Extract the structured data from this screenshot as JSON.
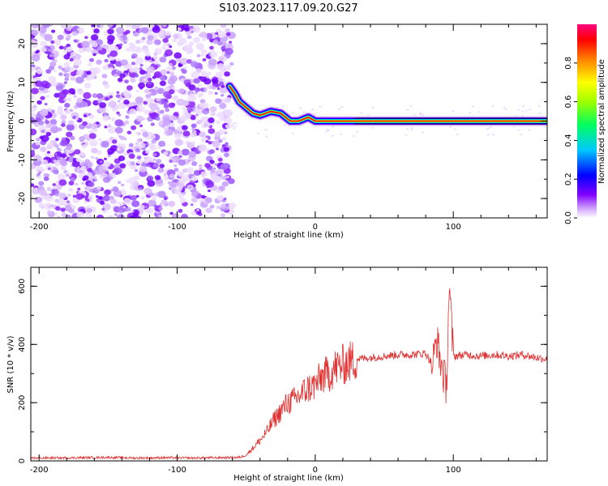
{
  "title": "S103.2023.117.09.20.G27",
  "chart_data": [
    {
      "type": "heatmap",
      "xlabel": "Height of straight line (km)",
      "ylabel": "Frequency (Hz)",
      "xlim": [
        -206,
        168
      ],
      "ylim": [
        -25,
        25
      ],
      "xticks": [
        -200,
        -100,
        0,
        100
      ],
      "xtick_labels": [
        "-200",
        "-100",
        "0",
        "100"
      ],
      "yticks": [
        -20,
        -10,
        0,
        10,
        20
      ],
      "ytick_labels": [
        "-20",
        "-10",
        "0",
        "10",
        "20"
      ],
      "noise_region_x": [
        -206,
        -60
      ],
      "ridge_points": [
        {
          "x": -62,
          "y": 9
        },
        {
          "x": -58,
          "y": 7
        },
        {
          "x": -55,
          "y": 5
        },
        {
          "x": -50,
          "y": 3.5
        },
        {
          "x": -45,
          "y": 2
        },
        {
          "x": -40,
          "y": 1.5
        },
        {
          "x": -32,
          "y": 2.5
        },
        {
          "x": -25,
          "y": 2
        },
        {
          "x": -18,
          "y": 0
        },
        {
          "x": -12,
          "y": 0
        },
        {
          "x": -5,
          "y": 1
        },
        {
          "x": 0,
          "y": 0
        },
        {
          "x": 10,
          "y": 0
        },
        {
          "x": 20,
          "y": 0
        },
        {
          "x": 30,
          "y": 0
        },
        {
          "x": 80,
          "y": 0
        },
        {
          "x": 90,
          "y": 0
        },
        {
          "x": 168,
          "y": 0
        }
      ],
      "colorbar": {
        "label": "Normalized spectral amplitude",
        "range": [
          0,
          1
        ],
        "ticks": [
          0.0,
          0.2,
          0.4,
          0.6,
          0.8
        ],
        "tick_labels": [
          "0.0",
          "0.2",
          "0.4",
          "0.6",
          "0.8"
        ],
        "colors": [
          "#ffffff",
          "#c080ff",
          "#8000ff",
          "#0000ff",
          "#00c0ff",
          "#00ff80",
          "#80ff00",
          "#ffff00",
          "#ff8000",
          "#ff0000",
          "#ff0080"
        ]
      }
    },
    {
      "type": "line",
      "xlabel": "Height of straight line (km)",
      "ylabel": "SNR (10 * v/v)",
      "xlim": [
        -206,
        168
      ],
      "ylim": [
        0,
        665
      ],
      "xticks": [
        -200,
        -100,
        0,
        100
      ],
      "xtick_labels": [
        "-200",
        "-100",
        "0",
        "100"
      ],
      "yticks": [
        0,
        200,
        400,
        600
      ],
      "ytick_labels": [
        "0",
        "200",
        "400",
        "600"
      ],
      "color": "#e03030",
      "series": [
        {
          "x": [
            -206,
            -190,
            -170,
            -150,
            -130,
            -110,
            -90,
            -70,
            -55,
            -50,
            -45,
            -40,
            -35,
            -30,
            -25,
            -20,
            -15,
            -10,
            -5,
            0,
            5,
            10,
            15,
            20,
            25,
            30,
            40,
            50,
            60,
            70,
            80,
            85,
            88,
            90,
            95,
            97,
            100,
            110,
            120,
            130,
            140,
            150,
            160,
            168
          ],
          "y": [
            10,
            10,
            11,
            12,
            10,
            11,
            10,
            11,
            12,
            20,
            45,
            70,
            100,
            140,
            170,
            200,
            210,
            230,
            250,
            260,
            290,
            300,
            320,
            330,
            340,
            350,
            355,
            360,
            365,
            365,
            370,
            330,
            420,
            360,
            250,
            600,
            360,
            365,
            360,
            365,
            360,
            365,
            355,
            350
          ]
        }
      ]
    }
  ]
}
